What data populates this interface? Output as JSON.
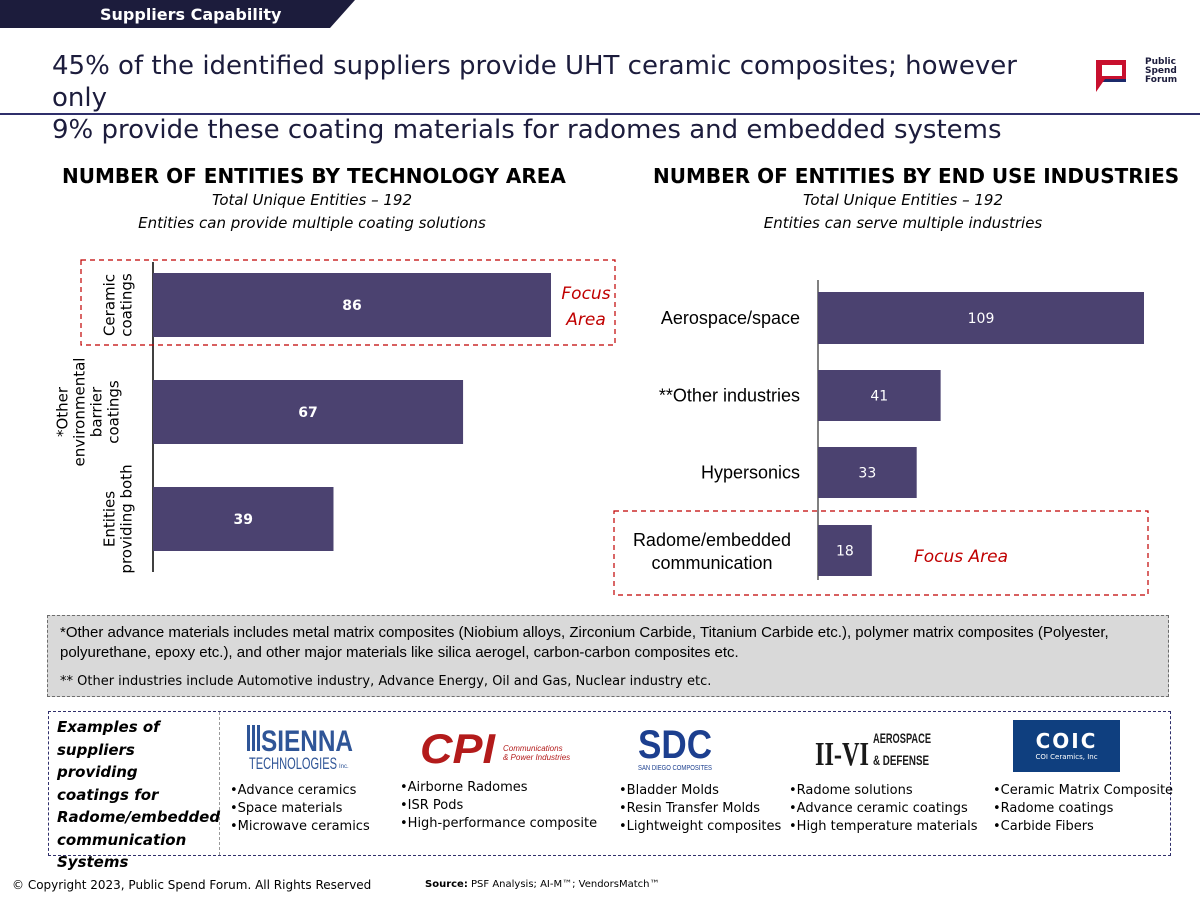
{
  "header": {
    "tag": "Suppliers Capability",
    "headline_line1": "45% of the identified suppliers provide UHT ceramic composites; however only",
    "headline_line2": "9% provide these coating materials for radomes and embedded systems",
    "logo_text": [
      "Public",
      "Spend",
      "Forum"
    ]
  },
  "colors": {
    "bar": "#4b4270",
    "focus": "#c00000",
    "navy": "#1c1c3c",
    "note_bg": "#d9d9d9"
  },
  "chart_data": [
    {
      "type": "bar",
      "orientation": "horizontal",
      "title": "NUMBER OF ENTITIES BY TECHNOLOGY AREA",
      "subtitle_lines": [
        "Total Unique Entities – 192",
        "Entities can provide multiple coating solutions"
      ],
      "categories": [
        "Ceramic coatings",
        "*Other environmental barrier coatings",
        "Entities providing both"
      ],
      "category_label_lines": [
        [
          "Ceramic",
          "coatings"
        ],
        [
          "*Other",
          "environmental",
          "barrier",
          "coatings"
        ],
        [
          "Entities",
          "providing both"
        ]
      ],
      "values": [
        86,
        67,
        39
      ],
      "xlim": [
        0,
        86
      ],
      "focus_category": "Ceramic coatings",
      "focus_label_lines": [
        "Focus",
        "Area"
      ],
      "grid": false,
      "legend": "none"
    },
    {
      "type": "bar",
      "orientation": "horizontal",
      "title": "NUMBER OF ENTITIES BY END USE INDUSTRIES",
      "subtitle_lines": [
        "Total Unique Entities – 192",
        "Entities can serve multiple industries"
      ],
      "categories": [
        "Aerospace/space",
        "**Other industries",
        "Hypersonics",
        "Radome/embedded communication"
      ],
      "category_label_lines": [
        [
          "Aerospace/space"
        ],
        [
          "**Other industries"
        ],
        [
          "Hypersonics"
        ],
        [
          "Radome/embedded",
          "communication"
        ]
      ],
      "values": [
        109,
        41,
        33,
        18
      ],
      "xlim": [
        0,
        109
      ],
      "focus_category": "Radome/embedded communication",
      "focus_label": "Focus Area",
      "grid": false,
      "legend": "none"
    }
  ],
  "notes": {
    "note1": "*Other advance materials includes metal matrix composites (Niobium alloys, Zirconium Carbide, Titanium Carbide etc.), polymer matrix composites (Polyester, polyurethane, epoxy etc.), and other major materials  like silica aerogel, carbon-carbon composites etc.",
    "note2": "** Other industries include Automotive industry, Advance Energy, Oil and Gas, Nuclear industry etc."
  },
  "suppliers": {
    "label_lines": [
      "Examples of",
      "suppliers providing",
      "coatings for",
      "Radome/embedded",
      "communication",
      "Systems"
    ],
    "items": [
      {
        "logo": "sienna-logo",
        "logo_text": [
          "SIENNA",
          "TECHNOLOGIES",
          "Inc."
        ],
        "bullets": [
          "•Advance ceramics",
          "•Space materials",
          "•Microwave ceramics"
        ]
      },
      {
        "logo": "cpi-logo",
        "logo_text": [
          "CPI",
          "Communications",
          "& Power Industries"
        ],
        "bullets": [
          "•Airborne Radomes",
          "•ISR Pods",
          "•High-performance composite"
        ]
      },
      {
        "logo": "sdc-logo",
        "logo_text": [
          "SDC",
          "SAN DIEGO COMPOSITES"
        ],
        "bullets": [
          "•Bladder Molds",
          "•Resin Transfer Molds",
          "•Lightweight composites"
        ]
      },
      {
        "logo": "ii-vi-logo",
        "logo_text": [
          "II-VI",
          "AEROSPACE",
          "& DEFENSE"
        ],
        "bullets": [
          "•Radome solutions",
          "•Advance ceramic coatings",
          "•High temperature materials"
        ]
      },
      {
        "logo": "coic-logo",
        "logo_text": [
          "COIC",
          "COI Ceramics, Inc"
        ],
        "bullets": [
          "•Ceramic Matrix Composite",
          "•Radome coatings",
          "•Carbide Fibers"
        ]
      }
    ]
  },
  "footer": {
    "copyright": "© Copyright 2023, Public Spend Forum. All Rights Reserved",
    "source_label": "Source:",
    "source_text": " PSF Analysis; AI-M™; VendorsMatch™"
  }
}
